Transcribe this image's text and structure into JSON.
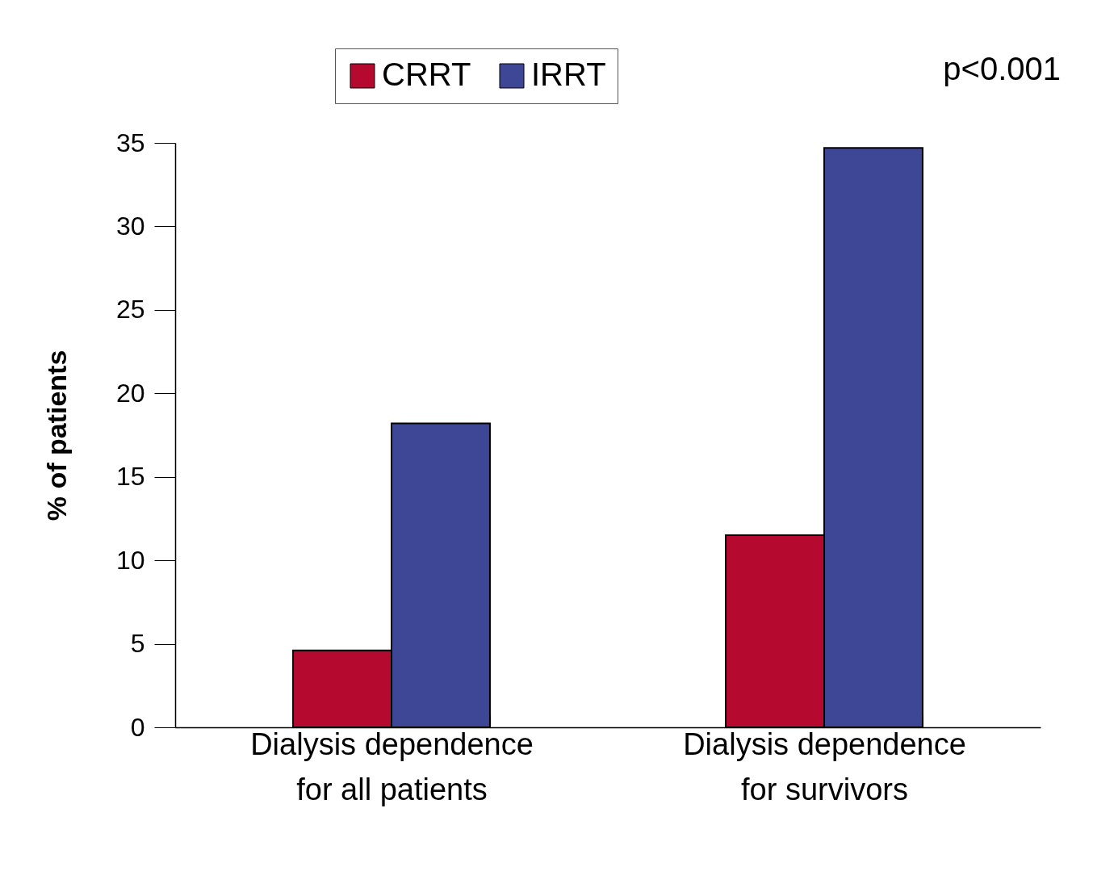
{
  "chart_data": {
    "type": "bar",
    "ylabel": "% of patients",
    "categories": [
      "Dialysis dependence for all patients",
      "Dialysis dependence for survivors"
    ],
    "series": [
      {
        "name": "CRRT",
        "color": "#b5092f",
        "values": [
          4.6,
          11.5
        ]
      },
      {
        "name": "IRRT",
        "color": "#3e4795",
        "values": [
          18.2,
          34.7
        ]
      }
    ],
    "ylim": [
      0,
      35
    ],
    "yticks": [
      0,
      5,
      10,
      15,
      20,
      25,
      30,
      35
    ],
    "grid": false,
    "legend": "top",
    "annotations": [
      "p<0.001"
    ]
  }
}
